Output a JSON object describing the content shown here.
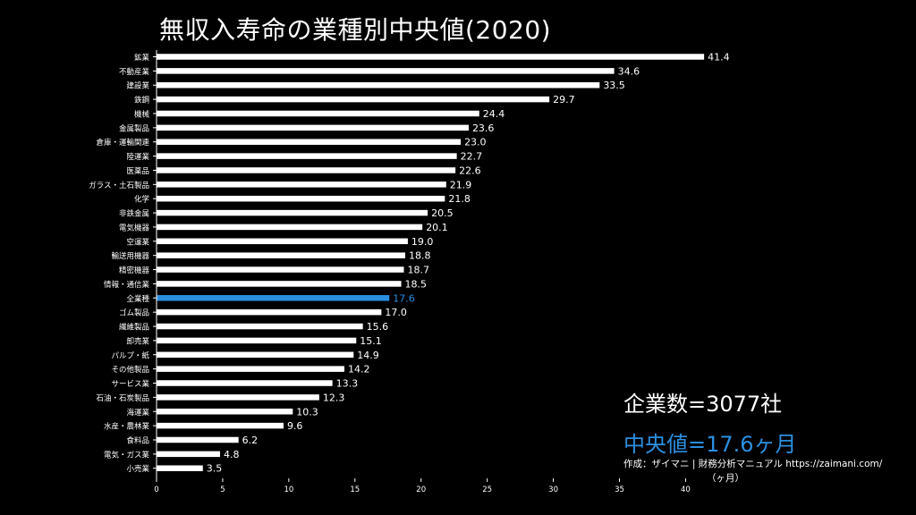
{
  "chart_data": {
    "type": "bar",
    "orientation": "horizontal",
    "title": "無収入寿命の業種別中央値(2020)",
    "categories": [
      "鉱業",
      "不動産業",
      "建設業",
      "鉄鋼",
      "機械",
      "金属製品",
      "倉庫・運輸関連",
      "陸運業",
      "医薬品",
      "ガラス・土石製品",
      "化学",
      "非鉄金属",
      "電気機器",
      "空運業",
      "輸送用機器",
      "精密機器",
      "情報・通信業",
      "全業種",
      "ゴム製品",
      "繊維製品",
      "卸売業",
      "パルプ・紙",
      "その他製品",
      "サービス業",
      "石油・石炭製品",
      "海運業",
      "水産・農林業",
      "食料品",
      "電気・ガス業",
      "小売業"
    ],
    "values": [
      41.4,
      34.6,
      33.5,
      29.7,
      24.4,
      23.6,
      23.0,
      22.7,
      22.6,
      21.9,
      21.8,
      20.5,
      20.1,
      19.0,
      18.8,
      18.7,
      18.5,
      17.6,
      17.0,
      15.6,
      15.1,
      14.9,
      14.2,
      13.3,
      12.3,
      10.3,
      9.6,
      6.2,
      4.8,
      3.5
    ],
    "value_labels": [
      "41.4",
      "34.6",
      "33.5",
      "29.7",
      "24.4",
      "23.6",
      "23.0",
      "22.7",
      "22.6",
      "21.9",
      "21.8",
      "20.5",
      "20.1",
      "19.0",
      "18.8",
      "18.7",
      "18.5",
      "17.6",
      "17.0",
      "15.6",
      "15.1",
      "14.9",
      "14.2",
      "13.3",
      "12.3",
      "10.3",
      "9.6",
      "6.2",
      "4.8",
      "3.5"
    ],
    "highlight_category": "全業種",
    "xlim": [
      0,
      42
    ],
    "xticks": [
      0,
      5,
      10,
      15,
      20,
      25,
      30,
      35,
      40
    ],
    "xlabel": "（ヶ月）",
    "grid": false,
    "colors": {
      "bar": "#ffffff",
      "highlight": "#2b8fe0",
      "background": "#000000",
      "text": "#ffffff"
    }
  },
  "summary": {
    "company_count": "企業数=3077社",
    "median": "中央値=17.6ヶ月"
  },
  "credit": "作成：ザイマニ | 財務分析マニュアル https://zaimani.com/"
}
